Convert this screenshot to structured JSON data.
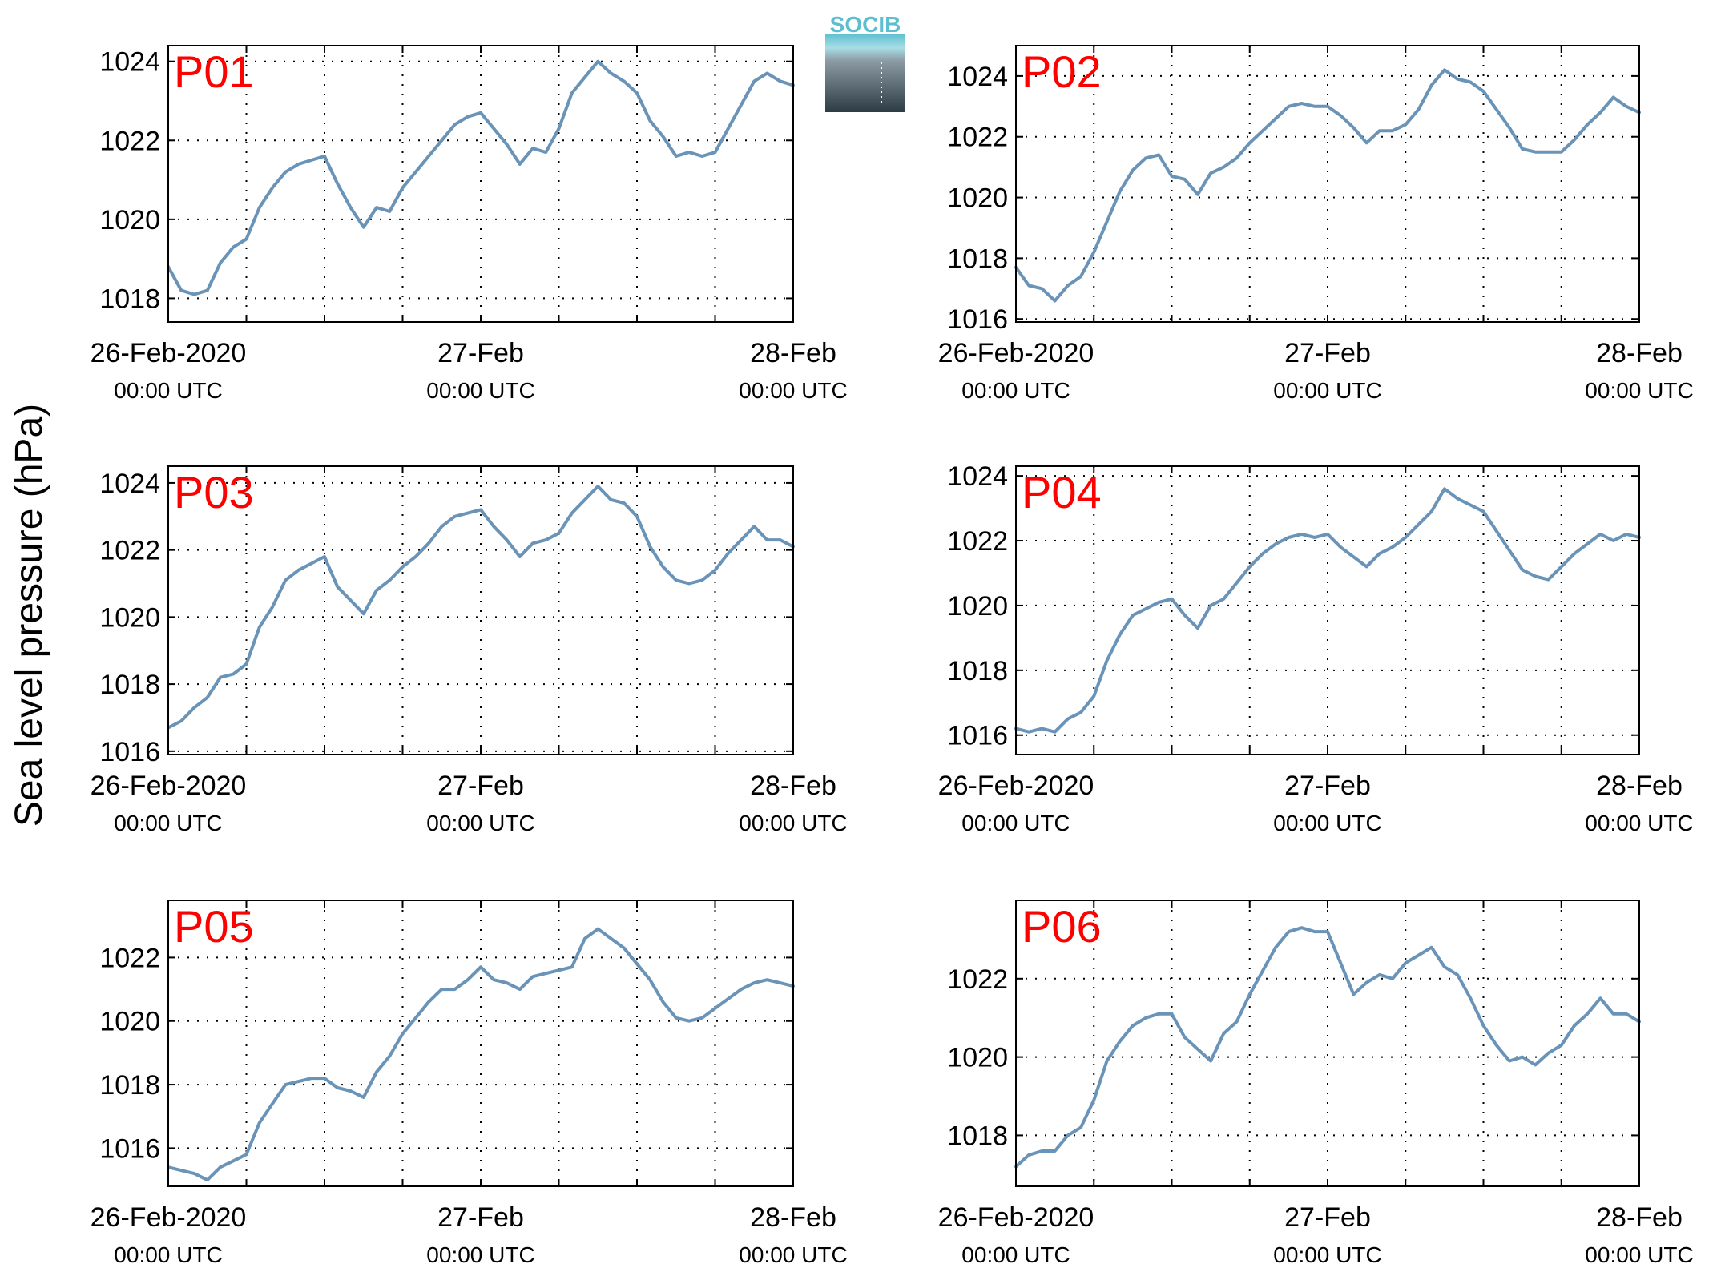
{
  "figure": {
    "ylabel": "Sea level pressure (hPa)",
    "logo_text": "SOCIB",
    "line_color": "#6A93B8",
    "label_color": "#FF0000",
    "logo_color": "#5BBFD0"
  },
  "chart_data": [
    {
      "type": "line",
      "title": "P01",
      "x_tick_labels": [
        {
          "date": "26-Feb-2020",
          "time": "00:00 UTC"
        },
        {
          "date": "27-Feb",
          "time": "00:00 UTC"
        },
        {
          "date": "28-Feb",
          "time": "00:00 UTC"
        }
      ],
      "xlim": [
        "2020-02-26T00:00Z",
        "2020-02-28T00:00Z"
      ],
      "ylim": [
        1017.4,
        1024.4
      ],
      "yticks": [
        1018,
        1020,
        1022,
        1024
      ],
      "grid": true,
      "series": [
        {
          "x": [
            "2020-02-26T00:00Z",
            "2020-02-26T01:00Z",
            "2020-02-26T02:00Z",
            "2020-02-26T03:00Z",
            "2020-02-26T04:00Z",
            "2020-02-26T05:00Z",
            "2020-02-26T06:00Z",
            "2020-02-26T07:00Z",
            "2020-02-26T08:00Z",
            "2020-02-26T09:00Z",
            "2020-02-26T10:00Z",
            "2020-02-26T11:00Z",
            "2020-02-26T12:00Z",
            "2020-02-26T13:00Z",
            "2020-02-26T14:00Z",
            "2020-02-26T15:00Z",
            "2020-02-26T16:00Z",
            "2020-02-26T17:00Z",
            "2020-02-26T18:00Z",
            "2020-02-26T19:00Z",
            "2020-02-26T20:00Z",
            "2020-02-26T21:00Z",
            "2020-02-26T22:00Z",
            "2020-02-26T23:00Z",
            "2020-02-27T00:00Z",
            "2020-02-27T01:00Z",
            "2020-02-27T02:00Z",
            "2020-02-27T03:00Z",
            "2020-02-27T04:00Z",
            "2020-02-27T05:00Z",
            "2020-02-27T06:00Z",
            "2020-02-27T07:00Z",
            "2020-02-27T08:00Z",
            "2020-02-27T09:00Z",
            "2020-02-27T10:00Z",
            "2020-02-27T11:00Z",
            "2020-02-27T12:00Z",
            "2020-02-27T13:00Z",
            "2020-02-27T14:00Z",
            "2020-02-27T15:00Z",
            "2020-02-27T16:00Z",
            "2020-02-27T17:00Z",
            "2020-02-27T18:00Z",
            "2020-02-27T19:00Z",
            "2020-02-27T20:00Z",
            "2020-02-27T21:00Z",
            "2020-02-27T22:00Z",
            "2020-02-27T23:00Z",
            "2020-02-28T00:00Z"
          ],
          "y": [
            1018.8,
            1018.2,
            1018.1,
            1018.2,
            1018.9,
            1019.3,
            1019.5,
            1020.3,
            1020.8,
            1021.2,
            1021.4,
            1021.5,
            1021.6,
            1020.9,
            1020.3,
            1019.8,
            1020.3,
            1020.2,
            1020.8,
            1021.2,
            1021.6,
            1022.0,
            1022.4,
            1022.6,
            1022.7,
            1022.3,
            1021.9,
            1021.4,
            1021.8,
            1021.7,
            1022.3,
            1023.2,
            1023.6,
            1024.0,
            1023.7,
            1023.5,
            1023.2,
            1022.5,
            1022.1,
            1021.6,
            1021.7,
            1021.6,
            1021.7,
            1022.3,
            1022.9,
            1023.5,
            1023.7,
            1023.5,
            1023.4
          ]
        }
      ]
    },
    {
      "type": "line",
      "title": "P02",
      "x_tick_labels": [
        {
          "date": "26-Feb-2020",
          "time": "00:00 UTC"
        },
        {
          "date": "27-Feb",
          "time": "00:00 UTC"
        },
        {
          "date": "28-Feb",
          "time": "00:00 UTC"
        }
      ],
      "xlim": [
        "2020-02-26T00:00Z",
        "2020-02-28T00:00Z"
      ],
      "ylim": [
        1015.9,
        1025.0
      ],
      "yticks": [
        1016,
        1018,
        1020,
        1022,
        1024
      ],
      "grid": true,
      "series": [
        {
          "x": [
            "2020-02-26T00:00Z",
            "2020-02-26T01:00Z",
            "2020-02-26T02:00Z",
            "2020-02-26T03:00Z",
            "2020-02-26T04:00Z",
            "2020-02-26T05:00Z",
            "2020-02-26T06:00Z",
            "2020-02-26T07:00Z",
            "2020-02-26T08:00Z",
            "2020-02-26T09:00Z",
            "2020-02-26T10:00Z",
            "2020-02-26T11:00Z",
            "2020-02-26T12:00Z",
            "2020-02-26T13:00Z",
            "2020-02-26T14:00Z",
            "2020-02-26T15:00Z",
            "2020-02-26T16:00Z",
            "2020-02-26T17:00Z",
            "2020-02-26T18:00Z",
            "2020-02-26T19:00Z",
            "2020-02-26T20:00Z",
            "2020-02-26T21:00Z",
            "2020-02-26T22:00Z",
            "2020-02-26T23:00Z",
            "2020-02-27T00:00Z",
            "2020-02-27T01:00Z",
            "2020-02-27T02:00Z",
            "2020-02-27T03:00Z",
            "2020-02-27T04:00Z",
            "2020-02-27T05:00Z",
            "2020-02-27T06:00Z",
            "2020-02-27T07:00Z",
            "2020-02-27T08:00Z",
            "2020-02-27T09:00Z",
            "2020-02-27T10:00Z",
            "2020-02-27T11:00Z",
            "2020-02-27T12:00Z",
            "2020-02-27T13:00Z",
            "2020-02-27T14:00Z",
            "2020-02-27T15:00Z",
            "2020-02-27T16:00Z",
            "2020-02-27T17:00Z",
            "2020-02-27T18:00Z",
            "2020-02-27T19:00Z",
            "2020-02-27T20:00Z",
            "2020-02-27T21:00Z",
            "2020-02-27T22:00Z",
            "2020-02-27T23:00Z",
            "2020-02-28T00:00Z"
          ],
          "y": [
            1017.7,
            1017.1,
            1017.0,
            1016.6,
            1017.1,
            1017.4,
            1018.2,
            1019.2,
            1020.2,
            1020.9,
            1021.3,
            1021.4,
            1020.7,
            1020.6,
            1020.1,
            1020.8,
            1021.0,
            1021.3,
            1021.8,
            1022.2,
            1022.6,
            1023.0,
            1023.1,
            1023.0,
            1023.0,
            1022.7,
            1022.3,
            1021.8,
            1022.2,
            1022.2,
            1022.4,
            1022.9,
            1023.7,
            1024.2,
            1023.9,
            1023.8,
            1023.5,
            1022.9,
            1022.3,
            1021.6,
            1021.5,
            1021.5,
            1021.5,
            1021.9,
            1022.4,
            1022.8,
            1023.3,
            1023.0,
            1022.8
          ]
        }
      ]
    },
    {
      "type": "line",
      "title": "P03",
      "x_tick_labels": [
        {
          "date": "26-Feb-2020",
          "time": "00:00 UTC"
        },
        {
          "date": "27-Feb",
          "time": "00:00 UTC"
        },
        {
          "date": "28-Feb",
          "time": "00:00 UTC"
        }
      ],
      "xlim": [
        "2020-02-26T00:00Z",
        "2020-02-28T00:00Z"
      ],
      "ylim": [
        1015.9,
        1024.5
      ],
      "yticks": [
        1016,
        1018,
        1020,
        1022,
        1024
      ],
      "grid": true,
      "series": [
        {
          "x": [
            "2020-02-26T00:00Z",
            "2020-02-26T01:00Z",
            "2020-02-26T02:00Z",
            "2020-02-26T03:00Z",
            "2020-02-26T04:00Z",
            "2020-02-26T05:00Z",
            "2020-02-26T06:00Z",
            "2020-02-26T07:00Z",
            "2020-02-26T08:00Z",
            "2020-02-26T09:00Z",
            "2020-02-26T10:00Z",
            "2020-02-26T11:00Z",
            "2020-02-26T12:00Z",
            "2020-02-26T13:00Z",
            "2020-02-26T14:00Z",
            "2020-02-26T15:00Z",
            "2020-02-26T16:00Z",
            "2020-02-26T17:00Z",
            "2020-02-26T18:00Z",
            "2020-02-26T19:00Z",
            "2020-02-26T20:00Z",
            "2020-02-26T21:00Z",
            "2020-02-26T22:00Z",
            "2020-02-26T23:00Z",
            "2020-02-27T00:00Z",
            "2020-02-27T01:00Z",
            "2020-02-27T02:00Z",
            "2020-02-27T03:00Z",
            "2020-02-27T04:00Z",
            "2020-02-27T05:00Z",
            "2020-02-27T06:00Z",
            "2020-02-27T07:00Z",
            "2020-02-27T08:00Z",
            "2020-02-27T09:00Z",
            "2020-02-27T10:00Z",
            "2020-02-27T11:00Z",
            "2020-02-27T12:00Z",
            "2020-02-27T13:00Z",
            "2020-02-27T14:00Z",
            "2020-02-27T15:00Z",
            "2020-02-27T16:00Z",
            "2020-02-27T17:00Z",
            "2020-02-27T18:00Z",
            "2020-02-27T19:00Z",
            "2020-02-27T20:00Z",
            "2020-02-27T21:00Z",
            "2020-02-27T22:00Z",
            "2020-02-27T23:00Z",
            "2020-02-28T00:00Z"
          ],
          "y": [
            1016.7,
            1016.9,
            1017.3,
            1017.6,
            1018.2,
            1018.3,
            1018.6,
            1019.7,
            1020.3,
            1021.1,
            1021.4,
            1021.6,
            1021.8,
            1020.9,
            1020.5,
            1020.1,
            1020.8,
            1021.1,
            1021.5,
            1021.8,
            1022.2,
            1022.7,
            1023.0,
            1023.1,
            1023.2,
            1022.7,
            1022.3,
            1021.8,
            1022.2,
            1022.3,
            1022.5,
            1023.1,
            1023.5,
            1023.9,
            1023.5,
            1023.4,
            1023.0,
            1022.1,
            1021.5,
            1021.1,
            1021.0,
            1021.1,
            1021.4,
            1021.9,
            1022.3,
            1022.7,
            1022.3,
            1022.3,
            1022.1
          ]
        }
      ]
    },
    {
      "type": "line",
      "title": "P04",
      "x_tick_labels": [
        {
          "date": "26-Feb-2020",
          "time": "00:00 UTC"
        },
        {
          "date": "27-Feb",
          "time": "00:00 UTC"
        },
        {
          "date": "28-Feb",
          "time": "00:00 UTC"
        }
      ],
      "xlim": [
        "2020-02-26T00:00Z",
        "2020-02-28T00:00Z"
      ],
      "ylim": [
        1015.4,
        1024.3
      ],
      "yticks": [
        1016,
        1018,
        1020,
        1022,
        1024
      ],
      "grid": true,
      "series": [
        {
          "x": [
            "2020-02-26T00:00Z",
            "2020-02-26T01:00Z",
            "2020-02-26T02:00Z",
            "2020-02-26T03:00Z",
            "2020-02-26T04:00Z",
            "2020-02-26T05:00Z",
            "2020-02-26T06:00Z",
            "2020-02-26T07:00Z",
            "2020-02-26T08:00Z",
            "2020-02-26T09:00Z",
            "2020-02-26T10:00Z",
            "2020-02-26T11:00Z",
            "2020-02-26T12:00Z",
            "2020-02-26T13:00Z",
            "2020-02-26T14:00Z",
            "2020-02-26T15:00Z",
            "2020-02-26T16:00Z",
            "2020-02-26T17:00Z",
            "2020-02-26T18:00Z",
            "2020-02-26T19:00Z",
            "2020-02-26T20:00Z",
            "2020-02-26T21:00Z",
            "2020-02-26T22:00Z",
            "2020-02-26T23:00Z",
            "2020-02-27T00:00Z",
            "2020-02-27T01:00Z",
            "2020-02-27T02:00Z",
            "2020-02-27T03:00Z",
            "2020-02-27T04:00Z",
            "2020-02-27T05:00Z",
            "2020-02-27T06:00Z",
            "2020-02-27T07:00Z",
            "2020-02-27T08:00Z",
            "2020-02-27T09:00Z",
            "2020-02-27T10:00Z",
            "2020-02-27T11:00Z",
            "2020-02-27T12:00Z",
            "2020-02-27T13:00Z",
            "2020-02-27T14:00Z",
            "2020-02-27T15:00Z",
            "2020-02-27T16:00Z",
            "2020-02-27T17:00Z",
            "2020-02-27T18:00Z",
            "2020-02-27T19:00Z",
            "2020-02-27T20:00Z",
            "2020-02-27T21:00Z",
            "2020-02-27T22:00Z",
            "2020-02-27T23:00Z",
            "2020-02-28T00:00Z"
          ],
          "y": [
            1016.2,
            1016.1,
            1016.2,
            1016.1,
            1016.5,
            1016.7,
            1017.2,
            1018.3,
            1019.1,
            1019.7,
            1019.9,
            1020.1,
            1020.2,
            1019.7,
            1019.3,
            1020.0,
            1020.2,
            1020.7,
            1021.2,
            1021.6,
            1021.9,
            1022.1,
            1022.2,
            1022.1,
            1022.2,
            1021.8,
            1021.5,
            1021.2,
            1021.6,
            1021.8,
            1022.1,
            1022.5,
            1022.9,
            1023.6,
            1023.3,
            1023.1,
            1022.9,
            1022.3,
            1021.7,
            1021.1,
            1020.9,
            1020.8,
            1021.2,
            1021.6,
            1021.9,
            1022.2,
            1022.0,
            1022.2,
            1022.1
          ]
        }
      ]
    },
    {
      "type": "line",
      "title": "P05",
      "x_tick_labels": [
        {
          "date": "26-Feb-2020",
          "time": "00:00 UTC"
        },
        {
          "date": "27-Feb",
          "time": "00:00 UTC"
        },
        {
          "date": "28-Feb",
          "time": "00:00 UTC"
        }
      ],
      "xlim": [
        "2020-02-26T00:00Z",
        "2020-02-28T00:00Z"
      ],
      "ylim": [
        1014.8,
        1023.8
      ],
      "yticks": [
        1016,
        1018,
        1020,
        1022
      ],
      "grid": true,
      "series": [
        {
          "x": [
            "2020-02-26T00:00Z",
            "2020-02-26T01:00Z",
            "2020-02-26T02:00Z",
            "2020-02-26T03:00Z",
            "2020-02-26T04:00Z",
            "2020-02-26T05:00Z",
            "2020-02-26T06:00Z",
            "2020-02-26T07:00Z",
            "2020-02-26T08:00Z",
            "2020-02-26T09:00Z",
            "2020-02-26T10:00Z",
            "2020-02-26T11:00Z",
            "2020-02-26T12:00Z",
            "2020-02-26T13:00Z",
            "2020-02-26T14:00Z",
            "2020-02-26T15:00Z",
            "2020-02-26T16:00Z",
            "2020-02-26T17:00Z",
            "2020-02-26T18:00Z",
            "2020-02-26T19:00Z",
            "2020-02-26T20:00Z",
            "2020-02-26T21:00Z",
            "2020-02-26T22:00Z",
            "2020-02-26T23:00Z",
            "2020-02-27T00:00Z",
            "2020-02-27T01:00Z",
            "2020-02-27T02:00Z",
            "2020-02-27T03:00Z",
            "2020-02-27T04:00Z",
            "2020-02-27T05:00Z",
            "2020-02-27T06:00Z",
            "2020-02-27T07:00Z",
            "2020-02-27T08:00Z",
            "2020-02-27T09:00Z",
            "2020-02-27T10:00Z",
            "2020-02-27T11:00Z",
            "2020-02-27T12:00Z",
            "2020-02-27T13:00Z",
            "2020-02-27T14:00Z",
            "2020-02-27T15:00Z",
            "2020-02-27T16:00Z",
            "2020-02-27T17:00Z",
            "2020-02-27T18:00Z",
            "2020-02-27T19:00Z",
            "2020-02-27T20:00Z",
            "2020-02-27T21:00Z",
            "2020-02-27T22:00Z",
            "2020-02-27T23:00Z",
            "2020-02-28T00:00Z"
          ],
          "y": [
            1015.4,
            1015.3,
            1015.2,
            1015.0,
            1015.4,
            1015.6,
            1015.8,
            1016.8,
            1017.4,
            1018.0,
            1018.1,
            1018.2,
            1018.2,
            1017.9,
            1017.8,
            1017.6,
            1018.4,
            1018.9,
            1019.6,
            1020.1,
            1020.6,
            1021.0,
            1021.0,
            1021.3,
            1021.7,
            1021.3,
            1021.2,
            1021.0,
            1021.4,
            1021.5,
            1021.6,
            1021.7,
            1022.6,
            1022.9,
            1022.6,
            1022.3,
            1021.8,
            1021.3,
            1020.6,
            1020.1,
            1020.0,
            1020.1,
            1020.4,
            1020.7,
            1021.0,
            1021.2,
            1021.3,
            1021.2,
            1021.1
          ]
        }
      ]
    },
    {
      "type": "line",
      "title": "P06",
      "x_tick_labels": [
        {
          "date": "26-Feb-2020",
          "time": "00:00 UTC"
        },
        {
          "date": "27-Feb",
          "time": "00:00 UTC"
        },
        {
          "date": "28-Feb",
          "time": "00:00 UTC"
        }
      ],
      "xlim": [
        "2020-02-26T00:00Z",
        "2020-02-28T00:00Z"
      ],
      "ylim": [
        1016.7,
        1024.0
      ],
      "yticks": [
        1018,
        1020,
        1022
      ],
      "grid": true,
      "series": [
        {
          "x": [
            "2020-02-26T00:00Z",
            "2020-02-26T01:00Z",
            "2020-02-26T02:00Z",
            "2020-02-26T03:00Z",
            "2020-02-26T04:00Z",
            "2020-02-26T05:00Z",
            "2020-02-26T06:00Z",
            "2020-02-26T07:00Z",
            "2020-02-26T08:00Z",
            "2020-02-26T09:00Z",
            "2020-02-26T10:00Z",
            "2020-02-26T11:00Z",
            "2020-02-26T12:00Z",
            "2020-02-26T13:00Z",
            "2020-02-26T14:00Z",
            "2020-02-26T15:00Z",
            "2020-02-26T16:00Z",
            "2020-02-26T17:00Z",
            "2020-02-26T18:00Z",
            "2020-02-26T19:00Z",
            "2020-02-26T20:00Z",
            "2020-02-26T21:00Z",
            "2020-02-26T22:00Z",
            "2020-02-26T23:00Z",
            "2020-02-27T00:00Z",
            "2020-02-27T01:00Z",
            "2020-02-27T02:00Z",
            "2020-02-27T03:00Z",
            "2020-02-27T04:00Z",
            "2020-02-27T05:00Z",
            "2020-02-27T06:00Z",
            "2020-02-27T07:00Z",
            "2020-02-27T08:00Z",
            "2020-02-27T09:00Z",
            "2020-02-27T10:00Z",
            "2020-02-27T11:00Z",
            "2020-02-27T12:00Z",
            "2020-02-27T13:00Z",
            "2020-02-27T14:00Z",
            "2020-02-27T15:00Z",
            "2020-02-27T16:00Z",
            "2020-02-27T17:00Z",
            "2020-02-27T18:00Z",
            "2020-02-27T19:00Z",
            "2020-02-27T20:00Z",
            "2020-02-27T21:00Z",
            "2020-02-27T22:00Z",
            "2020-02-27T23:00Z",
            "2020-02-28T00:00Z"
          ],
          "y": [
            1017.2,
            1017.5,
            1017.6,
            1017.6,
            1018.0,
            1018.2,
            1018.9,
            1019.9,
            1020.4,
            1020.8,
            1021.0,
            1021.1,
            1021.1,
            1020.5,
            1020.2,
            1019.9,
            1020.6,
            1020.9,
            1021.6,
            1022.2,
            1022.8,
            1023.2,
            1023.3,
            1023.2,
            1023.2,
            1022.4,
            1021.6,
            1021.9,
            1022.1,
            1022.0,
            1022.4,
            1022.6,
            1022.8,
            1022.3,
            1022.1,
            1021.5,
            1020.8,
            1020.3,
            1019.9,
            1020.0,
            1019.8,
            1020.1,
            1020.3,
            1020.8,
            1021.1,
            1021.5,
            1021.1,
            1021.1,
            1020.9
          ]
        }
      ]
    }
  ]
}
